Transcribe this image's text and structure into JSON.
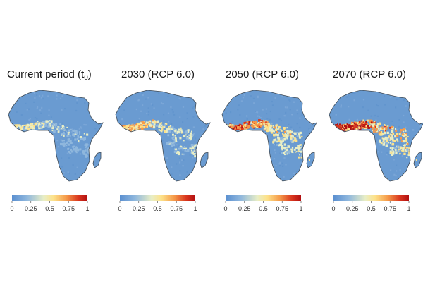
{
  "figure": {
    "colorbar_ticks": [
      "0",
      "0.25",
      "0.5",
      "0.75",
      "1"
    ],
    "colorscale": [
      "#5a8fd0",
      "#8fb7dd",
      "#e8eec6",
      "#fde28a",
      "#f59a4a",
      "#d9361e",
      "#b10f12"
    ],
    "land_color": "#6a9bd1",
    "coast_color": "#3f4a55",
    "panels": [
      {
        "title": "Current period (t",
        "title_sub": "0",
        "title_tail": ")",
        "hotspot_intensity": 0.35
      },
      {
        "title": "2030 (RCP 6.0)",
        "hotspot_intensity": 0.55
      },
      {
        "title": "2050 (RCP 6.0)",
        "hotspot_intensity": 0.75
      },
      {
        "title": "2070 (RCP 6.0)",
        "hotspot_intensity": 0.95
      }
    ]
  }
}
